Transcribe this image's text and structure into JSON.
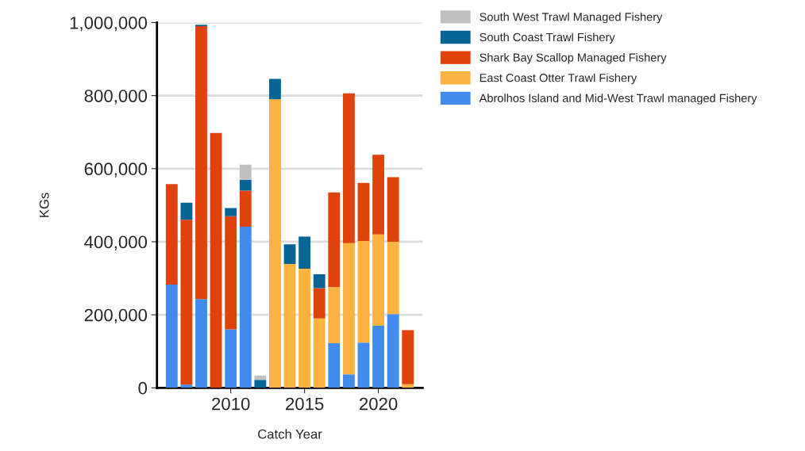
{
  "chart_data": {
    "type": "bar",
    "stacked": true,
    "xlabel": "Catch Year",
    "ylabel": "KGs",
    "x": [
      2006,
      2007,
      2008,
      2009,
      2010,
      2011,
      2012,
      2013,
      2014,
      2015,
      2016,
      2017,
      2018,
      2019,
      2020,
      2021,
      2022
    ],
    "series": [
      {
        "name": "Abrolhos Island and Mid-West Trawl managed Fishery",
        "color": "#428bec",
        "values": [
          283000,
          9000,
          243000,
          null,
          160000,
          441000,
          null,
          null,
          null,
          null,
          null,
          122000,
          37000,
          124000,
          170000,
          202000,
          null
        ]
      },
      {
        "name": "East Coast Otter Trawl Fishery",
        "color": "#fab341",
        "values": [
          null,
          null,
          null,
          null,
          null,
          null,
          null,
          790000,
          339000,
          326000,
          190000,
          154000,
          359000,
          278000,
          250000,
          198000,
          10000
        ]
      },
      {
        "name": "Shark Bay Scallop Managed Fishery",
        "color": "#e0420c",
        "values": [
          275000,
          451000,
          747000,
          698000,
          310000,
          99000,
          null,
          null,
          null,
          null,
          83000,
          259000,
          410000,
          159000,
          218000,
          177000,
          148000
        ]
      },
      {
        "name": "South Coast Trawl Fishery",
        "color": "#066594",
        "values": [
          null,
          47000,
          4000,
          null,
          22000,
          30000,
          22000,
          56000,
          54000,
          88000,
          38000,
          null,
          null,
          null,
          null,
          null,
          null
        ]
      },
      {
        "name": "South West Trawl Managed Fishery",
        "color": "#c0c0c0",
        "values": [
          null,
          null,
          null,
          null,
          null,
          41000,
          12000,
          null,
          null,
          null,
          null,
          null,
          null,
          null,
          null,
          null,
          null
        ]
      }
    ],
    "xlim": [
      2005,
      2023
    ],
    "xticks": [
      2010,
      2015,
      2020
    ],
    "ylim": [
      0,
      1000000
    ],
    "yticks": [
      {
        "value": 0,
        "label": "0"
      },
      {
        "value": 200000,
        "label": "200,000"
      },
      {
        "value": 400000,
        "label": "400,000"
      },
      {
        "value": 600000,
        "label": "600,000"
      },
      {
        "value": 800000,
        "label": "800,000"
      },
      {
        "value": 1000000,
        "label": "1,000,000"
      }
    ],
    "grid": "y",
    "legend": "top right"
  }
}
